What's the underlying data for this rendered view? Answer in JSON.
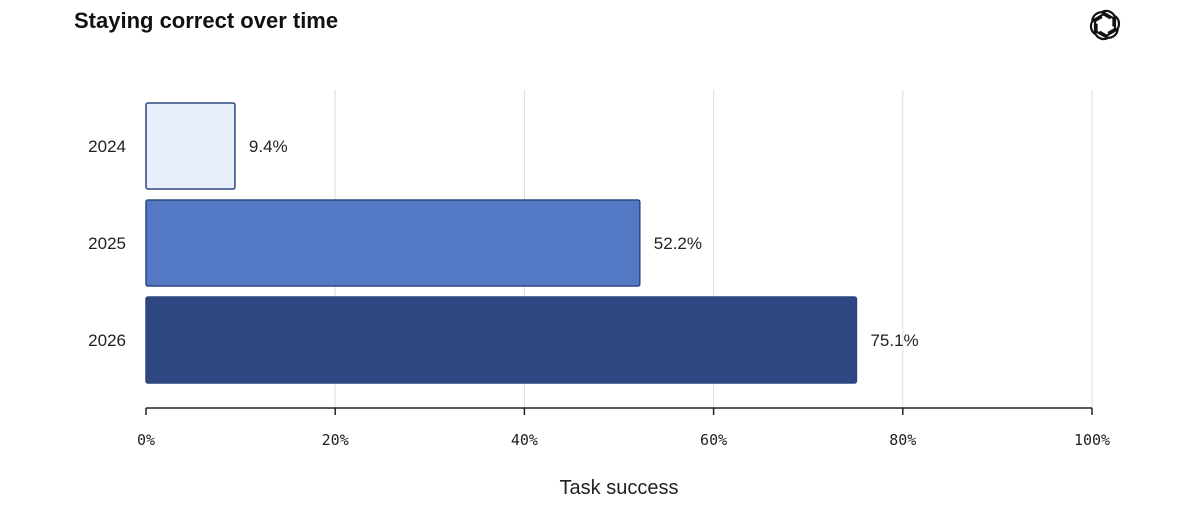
{
  "title": "Staying correct over time",
  "logo_icon": "openai-logo-icon",
  "chart_data": {
    "type": "bar",
    "orientation": "horizontal",
    "categories": [
      "2024",
      "2025",
      "2026"
    ],
    "values": [
      9.4,
      52.2,
      75.1
    ],
    "value_labels": [
      "9.4%",
      "52.2%",
      "75.1%"
    ],
    "colors": [
      "#e8f0fd",
      "#5378c4",
      "#2e4780"
    ],
    "border_color": "#2e4780",
    "xlabel": "Task success",
    "ylabel": "",
    "xlim": [
      0,
      100
    ],
    "xticks": [
      0,
      20,
      40,
      60,
      80,
      100
    ],
    "xtick_labels": [
      "0%",
      "20%",
      "40%",
      "60%",
      "80%",
      "100%"
    ],
    "grid": true
  }
}
